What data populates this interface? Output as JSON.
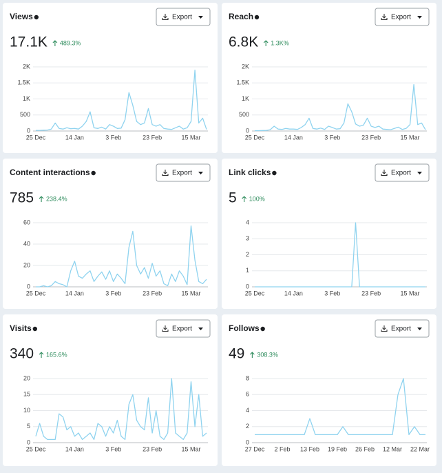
{
  "chart_data": [
    {
      "type": "line",
      "title": "Views",
      "metric": "17.1K",
      "change": "489.3%",
      "button": "Export",
      "color": "#8fd3ef",
      "categories": [
        "25 Dec",
        null,
        null,
        null,
        null,
        null,
        null,
        null,
        null,
        null,
        "14 Jan",
        null,
        null,
        null,
        null,
        null,
        null,
        null,
        null,
        null,
        "3 Feb",
        null,
        null,
        null,
        null,
        null,
        null,
        null,
        null,
        null,
        "23 Feb",
        null,
        null,
        null,
        null,
        null,
        null,
        null,
        null,
        null,
        "15 Mar",
        null,
        null,
        null,
        null
      ],
      "values": [
        20,
        20,
        25,
        30,
        60,
        250,
        80,
        60,
        100,
        70,
        80,
        60,
        150,
        300,
        600,
        100,
        80,
        120,
        60,
        200,
        150,
        80,
        90,
        350,
        1200,
        800,
        300,
        200,
        250,
        700,
        200,
        150,
        200,
        80,
        60,
        50,
        100,
        150,
        60,
        100,
        300,
        1900,
        250,
        400,
        50
      ],
      "ylim": [
        0,
        2000
      ],
      "yticks": [
        0,
        500,
        {
          "value": 1000,
          "label": "1K"
        },
        {
          "value": 1500,
          "label": "1.5K"
        },
        {
          "value": 2000,
          "label": "2K"
        }
      ],
      "grid": true
    },
    {
      "type": "line",
      "title": "Reach",
      "metric": "6.8K",
      "change": "1.3K%",
      "button": "Export",
      "color": "#8fd3ef",
      "categories": [
        "25 Dec",
        null,
        null,
        null,
        null,
        null,
        null,
        null,
        null,
        null,
        "14 Jan",
        null,
        null,
        null,
        null,
        null,
        null,
        null,
        null,
        null,
        "3 Feb",
        null,
        null,
        null,
        null,
        null,
        null,
        null,
        null,
        null,
        "23 Feb",
        null,
        null,
        null,
        null,
        null,
        null,
        null,
        null,
        null,
        "15 Mar",
        null,
        null,
        null,
        null
      ],
      "values": [
        10,
        10,
        15,
        20,
        40,
        150,
        60,
        50,
        80,
        60,
        60,
        50,
        110,
        200,
        400,
        80,
        60,
        90,
        50,
        150,
        110,
        60,
        70,
        250,
        850,
        600,
        220,
        150,
        180,
        400,
        150,
        110,
        150,
        60,
        50,
        40,
        80,
        120,
        50,
        80,
        200,
        1450,
        200,
        250,
        40
      ],
      "ylim": [
        0,
        2000
      ],
      "yticks": [
        0,
        500,
        {
          "value": 1000,
          "label": "1K"
        },
        {
          "value": 1500,
          "label": "1.5K"
        },
        {
          "value": 2000,
          "label": "2K"
        }
      ],
      "grid": true
    },
    {
      "type": "line",
      "title": "Content interactions",
      "metric": "785",
      "change": "238.4%",
      "button": "Export",
      "color": "#8fd3ef",
      "categories": [
        "25 Dec",
        null,
        null,
        null,
        null,
        null,
        null,
        null,
        null,
        null,
        "14 Jan",
        null,
        null,
        null,
        null,
        null,
        null,
        null,
        null,
        null,
        "3 Feb",
        null,
        null,
        null,
        null,
        null,
        null,
        null,
        null,
        null,
        "23 Feb",
        null,
        null,
        null,
        null,
        null,
        null,
        null,
        null,
        null,
        "15 Mar",
        null,
        null,
        null,
        null
      ],
      "values": [
        0,
        0,
        1,
        0,
        1,
        5,
        3,
        2,
        0,
        15,
        24,
        10,
        8,
        12,
        15,
        5,
        10,
        14,
        7,
        15,
        5,
        12,
        8,
        3,
        37,
        52,
        20,
        12,
        18,
        8,
        22,
        10,
        15,
        3,
        1,
        12,
        5,
        15,
        10,
        2,
        57,
        25,
        5,
        3,
        7
      ],
      "ylim": [
        0,
        60
      ],
      "yticks": [
        0,
        20,
        40,
        60
      ],
      "grid": true
    },
    {
      "type": "line",
      "title": "Link clicks",
      "metric": "5",
      "change": "100%",
      "button": "Export",
      "color": "#8fd3ef",
      "categories": [
        "25 Dec",
        null,
        null,
        null,
        null,
        null,
        null,
        null,
        null,
        null,
        "14 Jan",
        null,
        null,
        null,
        null,
        null,
        null,
        null,
        null,
        null,
        "3 Feb",
        null,
        null,
        null,
        null,
        null,
        null,
        null,
        null,
        null,
        "23 Feb",
        null,
        null,
        null,
        null,
        null,
        null,
        null,
        null,
        null,
        "15 Mar",
        null,
        null,
        null,
        null
      ],
      "values": [
        0,
        0,
        0,
        0,
        0,
        0,
        0,
        0,
        0,
        0,
        0,
        0,
        0,
        0,
        0,
        0,
        0,
        0,
        0,
        0,
        0,
        0,
        0,
        0,
        0,
        0,
        4,
        0,
        0,
        0,
        0,
        0,
        0,
        0,
        0,
        0,
        0,
        0,
        0,
        0,
        0,
        0,
        0,
        0,
        0
      ],
      "ylim": [
        0,
        4
      ],
      "yticks": [
        0,
        1,
        2,
        3,
        4
      ],
      "grid": true
    },
    {
      "type": "line",
      "title": "Visits",
      "metric": "340",
      "change": "165.6%",
      "button": "Export",
      "color": "#8fd3ef",
      "categories": [
        "25 Dec",
        null,
        null,
        null,
        null,
        null,
        null,
        null,
        null,
        null,
        "14 Jan",
        null,
        null,
        null,
        null,
        null,
        null,
        null,
        null,
        null,
        "3 Feb",
        null,
        null,
        null,
        null,
        null,
        null,
        null,
        null,
        null,
        "23 Feb",
        null,
        null,
        null,
        null,
        null,
        null,
        null,
        null,
        null,
        "15 Mar",
        null,
        null,
        null,
        null
      ],
      "values": [
        2,
        6,
        2,
        1,
        1,
        1,
        9,
        8,
        4,
        5,
        2,
        3,
        1,
        2,
        3,
        1,
        6,
        5,
        2,
        5,
        3,
        7,
        2,
        1,
        12,
        15,
        7,
        5,
        4,
        14,
        3,
        10,
        2,
        1,
        3,
        20,
        3,
        2,
        1,
        3,
        19,
        5,
        15,
        2,
        3
      ],
      "ylim": [
        0,
        20
      ],
      "yticks": [
        0,
        5,
        10,
        15,
        20
      ],
      "grid": true
    },
    {
      "type": "line",
      "title": "Follows",
      "metric": "49",
      "change": "308.3%",
      "button": "Export",
      "color": "#8fd3ef",
      "categories": [
        "27 Dec",
        null,
        null,
        null,
        null,
        "2 Feb",
        null,
        null,
        null,
        null,
        "13 Feb",
        null,
        null,
        null,
        null,
        "19 Feb",
        null,
        null,
        null,
        null,
        "26 Feb",
        null,
        null,
        null,
        null,
        "12 Mar",
        null,
        null,
        null,
        null,
        "22 Mar",
        null
      ],
      "values": [
        1,
        1,
        1,
        1,
        1,
        1,
        1,
        1,
        1,
        1,
        3,
        1,
        1,
        1,
        1,
        1,
        2,
        1,
        1,
        1,
        1,
        1,
        1,
        1,
        1,
        1,
        6,
        8,
        1,
        2,
        1,
        1
      ],
      "ylim": [
        0,
        8
      ],
      "yticks": [
        0,
        2,
        4,
        6,
        8
      ],
      "grid": true
    }
  ]
}
